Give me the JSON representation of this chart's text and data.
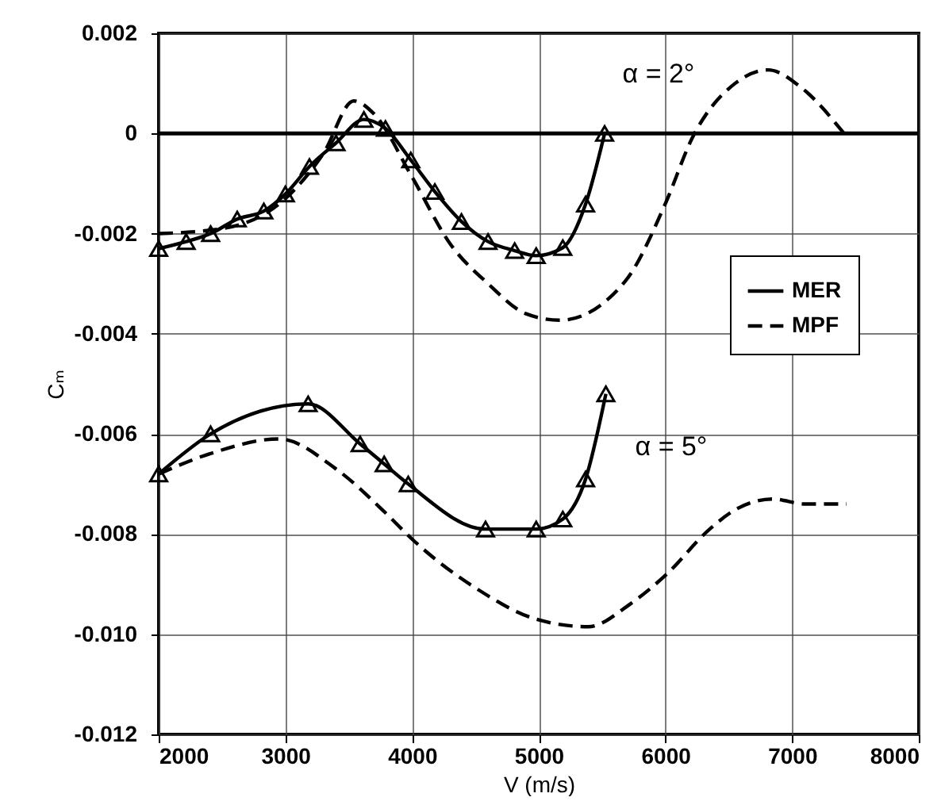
{
  "chart_data": {
    "type": "line",
    "xlabel": "V (m/s)",
    "ylabel": "Cₘ",
    "xlim": [
      2000,
      8000
    ],
    "xticks": [
      2000,
      3000,
      4000,
      5000,
      6000,
      7000,
      8000
    ],
    "ylim": [
      -0.012,
      0.002
    ],
    "yticks": [
      {
        "value": -0.012,
        "label": "-0.012"
      },
      {
        "value": -0.01,
        "label": "-0.010"
      },
      {
        "value": -0.008,
        "label": "-0.008"
      },
      {
        "value": -0.006,
        "label": "-0.006"
      },
      {
        "value": -0.004,
        "label": "-0.004"
      },
      {
        "value": -0.002,
        "label": "-0.002"
      },
      0,
      {
        "value": 0.002,
        "label": "0.002"
      }
    ],
    "grid": true,
    "legend": "right",
    "ref_lines": [
      {
        "axis": "y",
        "value": 0,
        "color": "#000000",
        "line_style": "solid"
      }
    ],
    "annotations": [
      "α = 2°",
      "α = 5°"
    ],
    "series": [
      {
        "name": "MER",
        "color": "#000000",
        "line_style": "solid",
        "marker": "triangle",
        "x": [
          2000,
          2217,
          2410,
          2620,
          2830,
          3000,
          3190,
          3400,
          3620,
          3790,
          3990,
          4180,
          4390,
          4600,
          4810,
          4980,
          5190,
          5370,
          5520
        ],
        "values": [
          -0.0023,
          -0.00216,
          -0.002,
          -0.00171,
          -0.00155,
          -0.00121,
          -0.00066,
          -0.00019,
          0.00028,
          0.0001,
          -0.00053,
          -0.00116,
          -0.00176,
          -0.00216,
          -0.00234,
          -0.00244,
          -0.00228,
          -0.00141,
          0
        ]
      },
      {
        "name": "MPF",
        "color": "#000000",
        "line_style": "dashed",
        "marker": "none",
        "x": [
          2000,
          2500,
          3000,
          3300,
          3540,
          3700,
          4000,
          4300,
          4600,
          4900,
          5170,
          5680,
          6000,
          6210,
          6550,
          6810,
          7080,
          7410
        ],
        "values": [
          -0.002,
          -0.0019,
          -0.0013,
          -0.0004,
          0.00065,
          0.00039,
          -0.00087,
          -0.0022,
          -0.003,
          -0.0036,
          -0.00373,
          -0.00296,
          -0.0014,
          -0.0001,
          0.001,
          0.00127,
          0.0009,
          0
        ]
      },
      {
        "color": "#000000",
        "line_style": "solid",
        "marker": "triangle",
        "x": [
          2000,
          2410,
          3180,
          3590,
          3780,
          3970,
          4580,
          4980,
          5190,
          5370,
          5530
        ],
        "values": [
          -0.0068,
          -0.006,
          -0.0054,
          -0.0062,
          -0.0066,
          -0.007,
          -0.0079,
          -0.0079,
          -0.0077,
          -0.0069,
          -0.0052
        ]
      },
      {
        "color": "#000000",
        "line_style": "dashed",
        "marker": "none",
        "x": [
          2000,
          2400,
          2950,
          3400,
          3800,
          4000,
          4516,
          4980,
          5390,
          5720,
          6010,
          6350,
          6560,
          6850,
          7100,
          7430
        ],
        "values": [
          -0.0068,
          -0.0064,
          -0.0061,
          -0.0067,
          -0.0076,
          -0.0081,
          -0.0091,
          -0.0097,
          -0.00985,
          -0.0094,
          -0.0088,
          -0.0079,
          -0.0075,
          -0.0073,
          -0.0074,
          -0.0074
        ]
      }
    ]
  }
}
